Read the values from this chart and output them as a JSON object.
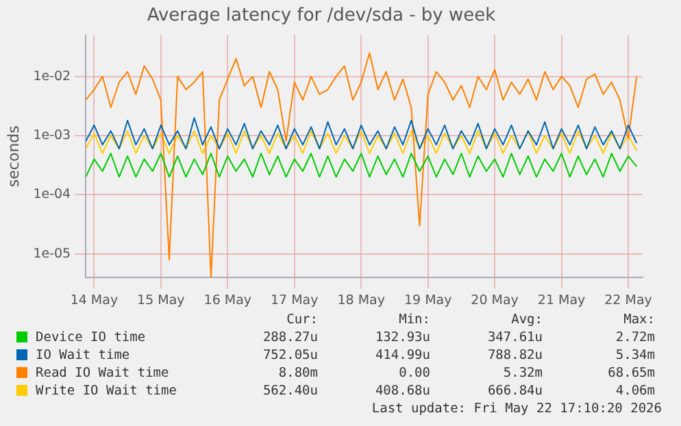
{
  "chart_data": {
    "type": "line",
    "title": "Average latency for /dev/sda - by week",
    "ylabel": "seconds",
    "log": "y",
    "grid": true,
    "legend": "bottom",
    "marker": "none",
    "line_style": "solid",
    "xlim": [
      "2026-05-14T09:00",
      "2026-05-22T17:10"
    ],
    "xticks": [
      {
        "value": "2026-05-14T12:00",
        "label": "14 May"
      },
      {
        "value": "2026-05-15T12:00",
        "label": "15 May"
      },
      {
        "value": "2026-05-16T12:00",
        "label": "16 May"
      },
      {
        "value": "2026-05-17T12:00",
        "label": "17 May"
      },
      {
        "value": "2026-05-18T12:00",
        "label": "18 May"
      },
      {
        "value": "2026-05-19T12:00",
        "label": "19 May"
      },
      {
        "value": "2026-05-20T12:00",
        "label": "20 May"
      },
      {
        "value": "2026-05-21T12:00",
        "label": "21 May"
      },
      {
        "value": "2026-05-22T12:00",
        "label": "22 May"
      }
    ],
    "ylim": [
      4e-06,
      0.05
    ],
    "yticks": [
      {
        "value": 1e-05,
        "label": "1e-05"
      },
      {
        "value": 0.0001,
        "label": "1e-04"
      },
      {
        "value": 0.001,
        "label": "1e-03"
      },
      {
        "value": 0.01,
        "label": "1e-02"
      }
    ],
    "x": [
      "2026-05-14T09:00",
      "2026-05-14T12:00",
      "2026-05-14T15:00",
      "2026-05-14T18:00",
      "2026-05-14T21:00",
      "2026-05-15T00:00",
      "2026-05-15T03:00",
      "2026-05-15T06:00",
      "2026-05-15T09:00",
      "2026-05-15T12:00",
      "2026-05-15T15:00",
      "2026-05-15T18:00",
      "2026-05-15T21:00",
      "2026-05-16T00:00",
      "2026-05-16T03:00",
      "2026-05-16T06:00",
      "2026-05-16T09:00",
      "2026-05-16T12:00",
      "2026-05-16T15:00",
      "2026-05-16T18:00",
      "2026-05-16T21:00",
      "2026-05-17T00:00",
      "2026-05-17T03:00",
      "2026-05-17T06:00",
      "2026-05-17T09:00",
      "2026-05-17T12:00",
      "2026-05-17T15:00",
      "2026-05-17T18:00",
      "2026-05-17T21:00",
      "2026-05-18T00:00",
      "2026-05-18T03:00",
      "2026-05-18T06:00",
      "2026-05-18T09:00",
      "2026-05-18T12:00",
      "2026-05-18T15:00",
      "2026-05-18T18:00",
      "2026-05-18T21:00",
      "2026-05-19T00:00",
      "2026-05-19T03:00",
      "2026-05-19T06:00",
      "2026-05-19T09:00",
      "2026-05-19T12:00",
      "2026-05-19T15:00",
      "2026-05-19T18:00",
      "2026-05-19T21:00",
      "2026-05-20T00:00",
      "2026-05-20T03:00",
      "2026-05-20T06:00",
      "2026-05-20T09:00",
      "2026-05-20T12:00",
      "2026-05-20T15:00",
      "2026-05-20T18:00",
      "2026-05-20T21:00",
      "2026-05-21T00:00",
      "2026-05-21T03:00",
      "2026-05-21T06:00",
      "2026-05-21T09:00",
      "2026-05-21T12:00",
      "2026-05-21T15:00",
      "2026-05-21T18:00",
      "2026-05-21T21:00",
      "2026-05-22T00:00",
      "2026-05-22T03:00",
      "2026-05-22T06:00",
      "2026-05-22T09:00",
      "2026-05-22T12:00",
      "2026-05-22T15:00"
    ],
    "series": [
      {
        "name": "Device IO time",
        "color": "#00cc00",
        "values": [
          0.0002,
          0.0004,
          0.00025,
          0.0005,
          0.0002,
          0.00045,
          0.0002,
          0.0004,
          0.00025,
          0.0005,
          0.0002,
          0.00045,
          0.0002,
          0.0004,
          0.00022,
          0.0005,
          0.0002,
          0.00045,
          0.00025,
          0.0004,
          0.0002,
          0.0005,
          0.00022,
          0.00045,
          0.0002,
          0.0004,
          0.00025,
          0.0005,
          0.0002,
          0.00045,
          0.0002,
          0.0004,
          0.00025,
          0.0005,
          0.0002,
          0.00045,
          0.00022,
          0.0004,
          0.0002,
          0.0005,
          0.00025,
          0.00045,
          0.0002,
          0.0004,
          0.00022,
          0.0005,
          0.0002,
          0.00045,
          0.00025,
          0.0004,
          0.0002,
          0.0005,
          0.00022,
          0.00045,
          0.0002,
          0.0004,
          0.00025,
          0.0005,
          0.0002,
          0.00045,
          0.00022,
          0.0004,
          0.0002,
          0.0005,
          0.00025,
          0.00045,
          0.0003
        ]
      },
      {
        "name": "IO Wait time",
        "color": "#0066b3",
        "values": [
          0.0008,
          0.0015,
          0.0007,
          0.0012,
          0.0006,
          0.0018,
          0.0007,
          0.0013,
          0.0006,
          0.0015,
          0.0007,
          0.0012,
          0.0006,
          0.002,
          0.0007,
          0.0014,
          0.0006,
          0.0013,
          0.0007,
          0.0016,
          0.0006,
          0.0012,
          0.0007,
          0.0015,
          0.0006,
          0.0013,
          0.0007,
          0.0014,
          0.0006,
          0.0017,
          0.0007,
          0.0013,
          0.0006,
          0.0015,
          0.0007,
          0.0012,
          0.0006,
          0.0014,
          0.0007,
          0.0018,
          0.0006,
          0.0013,
          0.0007,
          0.0015,
          0.0006,
          0.0012,
          0.0007,
          0.0016,
          0.0006,
          0.0013,
          0.0007,
          0.0015,
          0.0006,
          0.0012,
          0.0007,
          0.0017,
          0.0006,
          0.0013,
          0.0007,
          0.0015,
          0.0006,
          0.0014,
          0.0007,
          0.0012,
          0.0006,
          0.0015,
          0.00075
        ]
      },
      {
        "name": "Read IO Wait time",
        "color": "#ff8000",
        "values": [
          0.004,
          0.006,
          0.01,
          0.003,
          0.008,
          0.012,
          0.005,
          0.015,
          0.009,
          0.004,
          8e-06,
          0.01,
          0.006,
          0.008,
          0.012,
          4e-06,
          0.004,
          0.009,
          0.02,
          0.007,
          0.01,
          0.003,
          0.012,
          0.006,
          0.0008,
          0.008,
          0.004,
          0.01,
          0.005,
          0.006,
          0.01,
          0.015,
          0.004,
          0.008,
          0.025,
          0.006,
          0.012,
          0.004,
          0.009,
          0.003,
          3e-05,
          0.005,
          0.012,
          0.008,
          0.004,
          0.007,
          0.003,
          0.01,
          0.006,
          0.013,
          0.004,
          0.008,
          0.005,
          0.009,
          0.004,
          0.012,
          0.006,
          0.01,
          0.007,
          0.003,
          0.009,
          0.011,
          0.005,
          0.008,
          0.004,
          0.0009,
          0.01
        ]
      },
      {
        "name": "Write IO Wait time",
        "color": "#ffcc00",
        "values": [
          0.0006,
          0.0011,
          0.0005,
          0.001,
          0.0006,
          0.0012,
          0.0005,
          0.001,
          0.0006,
          0.0011,
          0.0005,
          0.001,
          0.0006,
          0.0012,
          0.0005,
          0.001,
          0.0006,
          0.0011,
          0.0005,
          0.0012,
          0.0006,
          0.001,
          0.0005,
          0.0011,
          0.0006,
          0.001,
          0.0005,
          0.0012,
          0.0006,
          0.0011,
          0.0005,
          0.001,
          0.0006,
          0.0012,
          0.0005,
          0.001,
          0.0006,
          0.0011,
          0.0005,
          0.0012,
          0.0006,
          0.001,
          0.0005,
          0.0011,
          0.0006,
          0.001,
          0.0005,
          0.0012,
          0.0006,
          0.0011,
          0.0005,
          0.001,
          0.0006,
          0.0012,
          0.0005,
          0.001,
          0.0006,
          0.0011,
          0.0005,
          0.0012,
          0.0006,
          0.001,
          0.0005,
          0.0011,
          0.0006,
          0.001,
          0.00056
        ]
      }
    ],
    "annotations": [
      "Cur:",
      "Min:",
      "Avg:",
      "Max:",
      "288.27u",
      "132.93u",
      "347.61u",
      "2.72m",
      "752.05u",
      "414.99u",
      "788.82u",
      "5.34m",
      "8.80m",
      "0.00",
      "5.32m",
      "68.65m",
      "562.40u",
      "408.68u",
      "666.84u",
      "4.06m",
      "Last update: Fri May 22 17:10:20 2026"
    ]
  }
}
